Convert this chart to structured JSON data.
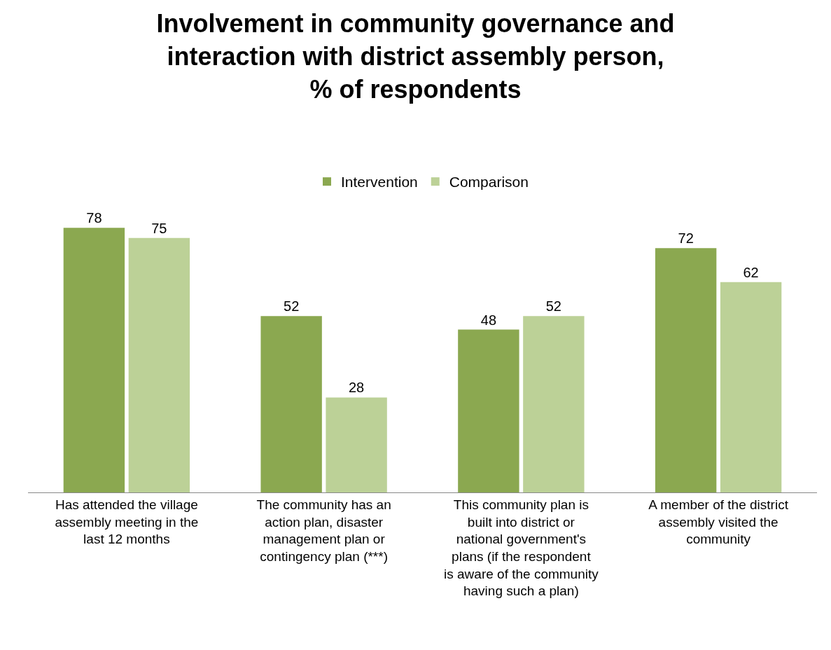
{
  "chart_data": {
    "type": "bar",
    "title": "Involvement in community governance and interaction with district assembly person, % of respondents",
    "categories": [
      "Has attended the village assembly meeting in the last 12 months",
      "The community has an action plan, disaster management plan or contingency plan (***)",
      "This community plan is built into district or national government's plans (if the respondent is aware of the community having such a plan)",
      "A member of the district assembly visited the community"
    ],
    "series": [
      {
        "name": "Intervention",
        "color": "#8ba850",
        "values": [
          78,
          52,
          48,
          72
        ]
      },
      {
        "name": "Comparison",
        "color": "#bcd197",
        "values": [
          75,
          28,
          52,
          62
        ]
      }
    ],
    "data_labels": true,
    "legend": "top"
  }
}
